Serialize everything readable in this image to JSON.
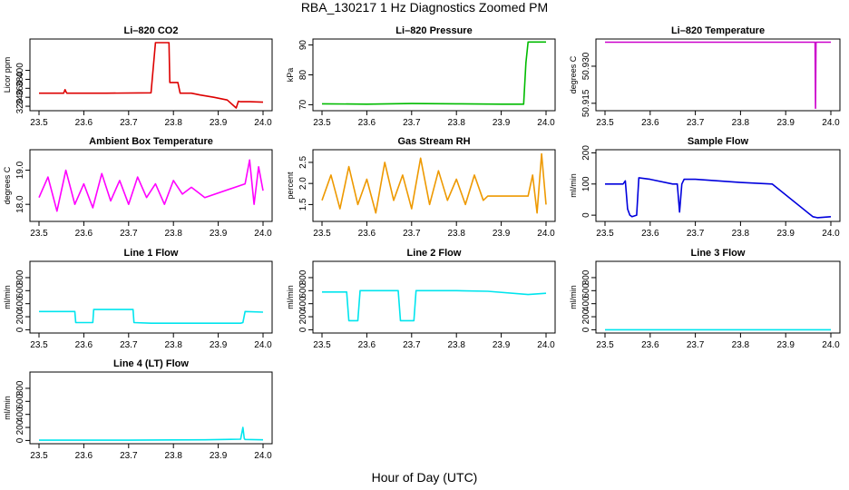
{
  "main_title": "RBA_130217  1 Hz Diagnostics Zoomed PM",
  "xlabel": "Hour of Day (UTC)",
  "chart_data": [
    {
      "type": "line",
      "title": "Li–820 CO2",
      "ylabel": "Licor ppm",
      "color": "#dd0000",
      "xlim": [
        23.5,
        24.0
      ],
      "ylim": [
        310,
        470
      ],
      "xticks": [
        23.5,
        23.6,
        23.7,
        23.8,
        23.9,
        24.0
      ],
      "yticks": [
        320,
        340,
        360,
        380,
        400
      ],
      "ytick_labels": [
        "320",
        "340",
        "360",
        "380",
        "400"
      ],
      "x": [
        23.5,
        23.555,
        23.558,
        23.562,
        23.65,
        23.75,
        23.76,
        23.79,
        23.792,
        23.81,
        23.815,
        23.83,
        23.84,
        23.86,
        23.89,
        23.92,
        23.94,
        23.945,
        23.95,
        23.97,
        24.0
      ],
      "y": [
        349,
        349,
        357,
        349,
        349,
        350,
        462,
        462,
        373,
        373,
        349,
        349,
        349,
        345,
        340,
        334,
        316,
        331,
        330,
        330,
        329
      ]
    },
    {
      "type": "line",
      "title": "Li–820 Pressure",
      "ylabel": "kPa",
      "color": "#00bb00",
      "xlim": [
        23.5,
        24.0
      ],
      "ylim": [
        68,
        92
      ],
      "xticks": [
        23.5,
        23.6,
        23.7,
        23.8,
        23.9,
        24.0
      ],
      "yticks": [
        70,
        80,
        90
      ],
      "ytick_labels": [
        "70",
        "80",
        "90"
      ],
      "x": [
        23.5,
        23.6,
        23.7,
        23.8,
        23.9,
        23.95,
        23.955,
        23.96,
        23.965,
        24.0
      ],
      "y": [
        70.3,
        70.2,
        70.4,
        70.3,
        70.2,
        70.2,
        84,
        91,
        91,
        91
      ]
    },
    {
      "type": "line",
      "title": "Li–820 Temperature",
      "ylabel": "degrees C",
      "color": "#cc00cc",
      "xlim": [
        23.5,
        24.0
      ],
      "ylim": [
        50.912,
        50.941
      ],
      "xticks": [
        23.5,
        23.6,
        23.7,
        23.8,
        23.9,
        24.0
      ],
      "yticks": [
        50.915,
        50.93
      ],
      "ytick_labels": [
        "50.915",
        "50.930"
      ],
      "x": [
        23.5,
        23.965,
        23.966,
        23.967,
        24.0
      ],
      "y": [
        50.9397,
        50.9397,
        50.913,
        50.9397,
        50.9397
      ]
    },
    {
      "type": "line",
      "title": "Ambient Box Temperature",
      "ylabel": "degrees C",
      "color": "#ff00ff",
      "xlim": [
        23.5,
        24.0
      ],
      "ylim": [
        17.5,
        19.6
      ],
      "xticks": [
        23.5,
        23.6,
        23.7,
        23.8,
        23.9,
        24.0
      ],
      "yticks": [
        18.0,
        19.0
      ],
      "ytick_labels": [
        "18.0",
        "19.0"
      ],
      "x": [
        23.5,
        23.52,
        23.54,
        23.56,
        23.58,
        23.6,
        23.62,
        23.64,
        23.66,
        23.68,
        23.7,
        23.72,
        23.74,
        23.76,
        23.78,
        23.8,
        23.82,
        23.84,
        23.86,
        23.87,
        23.96,
        23.97,
        23.98,
        23.99,
        24.0
      ],
      "y": [
        18.2,
        18.8,
        17.8,
        19.0,
        18.0,
        18.6,
        17.9,
        18.9,
        18.1,
        18.7,
        18.0,
        18.8,
        18.2,
        18.6,
        18.0,
        18.7,
        18.3,
        18.5,
        18.3,
        18.2,
        18.6,
        19.3,
        18.0,
        19.1,
        18.4
      ]
    },
    {
      "type": "line",
      "title": "Gas Stream RH",
      "ylabel": "percent",
      "color": "#ee9900",
      "xlim": [
        23.5,
        24.0
      ],
      "ylim": [
        1.1,
        2.8
      ],
      "xticks": [
        23.5,
        23.6,
        23.7,
        23.8,
        23.9,
        24.0
      ],
      "yticks": [
        1.5,
        2.0,
        2.5
      ],
      "ytick_labels": [
        "1.5",
        "2.0",
        "2.5"
      ],
      "x": [
        23.5,
        23.52,
        23.54,
        23.56,
        23.58,
        23.6,
        23.62,
        23.64,
        23.66,
        23.68,
        23.7,
        23.72,
        23.74,
        23.76,
        23.78,
        23.8,
        23.82,
        23.84,
        23.86,
        23.87,
        23.96,
        23.97,
        23.98,
        23.99,
        24.0
      ],
      "y": [
        1.6,
        2.2,
        1.4,
        2.4,
        1.5,
        2.1,
        1.3,
        2.5,
        1.6,
        2.2,
        1.4,
        2.6,
        1.5,
        2.3,
        1.6,
        2.1,
        1.5,
        2.2,
        1.6,
        1.7,
        1.7,
        2.2,
        1.3,
        2.7,
        1.5
      ]
    },
    {
      "type": "line",
      "title": "Sample Flow",
      "ylabel": "ml/min",
      "color": "#0000dd",
      "xlim": [
        23.5,
        24.0
      ],
      "ylim": [
        -20,
        210
      ],
      "xticks": [
        23.5,
        23.6,
        23.7,
        23.8,
        23.9,
        24.0
      ],
      "yticks": [
        0,
        100,
        200
      ],
      "ytick_labels": [
        "0",
        "100",
        "200"
      ],
      "x": [
        23.5,
        23.54,
        23.545,
        23.55,
        23.555,
        23.56,
        23.57,
        23.575,
        23.6,
        23.65,
        23.66,
        23.665,
        23.67,
        23.675,
        23.7,
        23.8,
        23.87,
        23.96,
        23.97,
        24.0
      ],
      "y": [
        100,
        100,
        110,
        20,
        0,
        -5,
        0,
        120,
        115,
        100,
        100,
        10,
        100,
        115,
        115,
        105,
        100,
        -5,
        -8,
        -5
      ]
    },
    {
      "type": "line",
      "title": "Line 1 Flow",
      "ylabel": "ml/min",
      "color": "#00e5ee",
      "xlim": [
        23.5,
        24.0
      ],
      "ylim": [
        -50,
        1050
      ],
      "xticks": [
        23.5,
        23.6,
        23.7,
        23.8,
        23.9,
        24.0
      ],
      "yticks": [
        0,
        200,
        400,
        600,
        800
      ],
      "ytick_labels": [
        "0",
        "200",
        "400",
        "600",
        "800"
      ],
      "x": [
        23.5,
        23.58,
        23.582,
        23.62,
        23.622,
        23.71,
        23.712,
        23.75,
        23.8,
        23.95,
        23.955,
        23.96,
        24.0
      ],
      "y": [
        280,
        280,
        110,
        110,
        310,
        310,
        110,
        100,
        100,
        100,
        110,
        280,
        270
      ]
    },
    {
      "type": "line",
      "title": "Line 2 Flow",
      "ylabel": "ml/min",
      "color": "#00e5ee",
      "xlim": [
        23.5,
        24.0
      ],
      "ylim": [
        -50,
        1050
      ],
      "xticks": [
        23.5,
        23.6,
        23.7,
        23.8,
        23.9,
        24.0
      ],
      "yticks": [
        0,
        200,
        400,
        600,
        800
      ],
      "ytick_labels": [
        "0",
        "200",
        "400",
        "600",
        "800"
      ],
      "x": [
        23.5,
        23.555,
        23.56,
        23.58,
        23.585,
        23.67,
        23.675,
        23.705,
        23.71,
        23.8,
        23.87,
        23.96,
        24.0
      ],
      "y": [
        580,
        580,
        140,
        140,
        600,
        600,
        140,
        140,
        600,
        600,
        590,
        540,
        560
      ]
    },
    {
      "type": "line",
      "title": "Line 3 Flow",
      "ylabel": "ml/min",
      "color": "#00e5ee",
      "xlim": [
        23.5,
        24.0
      ],
      "ylim": [
        -50,
        1050
      ],
      "xticks": [
        23.5,
        23.6,
        23.7,
        23.8,
        23.9,
        24.0
      ],
      "yticks": [
        0,
        200,
        400,
        600,
        800
      ],
      "ytick_labels": [
        "0",
        "200",
        "400",
        "600",
        "800"
      ],
      "x": [
        23.5,
        24.0
      ],
      "y": [
        0,
        0
      ]
    },
    {
      "type": "line",
      "title": "Line 4 (LT) Flow",
      "ylabel": "ml/min",
      "color": "#00e5ee",
      "xlim": [
        23.5,
        24.0
      ],
      "ylim": [
        -50,
        1050
      ],
      "xticks": [
        23.5,
        23.6,
        23.7,
        23.8,
        23.9,
        24.0
      ],
      "yticks": [
        0,
        200,
        400,
        600,
        800
      ],
      "ytick_labels": [
        "0",
        "200",
        "400",
        "600",
        "800"
      ],
      "x": [
        23.5,
        23.6,
        23.7,
        23.8,
        23.87,
        23.95,
        23.955,
        23.958,
        23.96,
        24.0
      ],
      "y": [
        5,
        5,
        5,
        8,
        10,
        20,
        200,
        30,
        15,
        10
      ]
    }
  ]
}
